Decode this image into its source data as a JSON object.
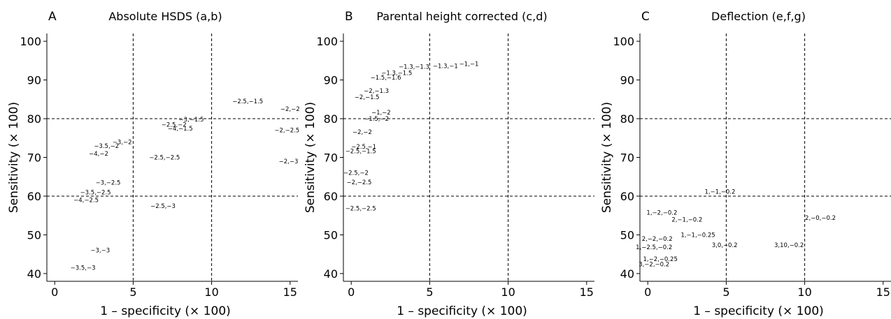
{
  "chart_data": [
    {
      "type": "scatter",
      "panel": "A",
      "title": "Absolute HSDS (a,b)",
      "xlabel": "1 – specificity (× 100)",
      "ylabel": "Sensitivity (× 100)",
      "xlim": [
        -0.5,
        15.5
      ],
      "ylim": [
        38,
        102
      ],
      "xticks": [
        0,
        5,
        10,
        15
      ],
      "yticks": [
        40,
        50,
        60,
        70,
        80,
        90,
        100
      ],
      "ref_x": [
        5,
        10
      ],
      "ref_y": [
        60,
        80
      ],
      "points": [
        {
          "label": "−2.5,−1.5",
          "x": 12.3,
          "y": 84.5
        },
        {
          "label": "−2,−2",
          "x": 15.0,
          "y": 82.5
        },
        {
          "label": "−3,−1.5",
          "x": 8.7,
          "y": 79.8
        },
        {
          "label": "−2.5,−2",
          "x": 7.6,
          "y": 78.5
        },
        {
          "label": "−4,−1.5",
          "x": 8.0,
          "y": 77.5
        },
        {
          "label": "−2,−2.5",
          "x": 14.8,
          "y": 77.0
        },
        {
          "label": "−3,−2",
          "x": 4.3,
          "y": 74.0
        },
        {
          "label": "−3.5,−2",
          "x": 3.3,
          "y": 73.0
        },
        {
          "label": "−4,−2",
          "x": 2.8,
          "y": 71.0
        },
        {
          "label": "−2.5,−2.5",
          "x": 7.0,
          "y": 70.0
        },
        {
          "label": "−2,−3",
          "x": 14.9,
          "y": 69.0
        },
        {
          "label": "−3,−2.5",
          "x": 3.4,
          "y": 63.5
        },
        {
          "label": "−3.5,−2.5",
          "x": 2.6,
          "y": 61.0
        },
        {
          "label": "−4,−2.5",
          "x": 2.0,
          "y": 59.0
        },
        {
          "label": "−2.5,−3",
          "x": 6.9,
          "y": 57.5
        },
        {
          "label": "−3,−3",
          "x": 2.9,
          "y": 46.0
        },
        {
          "label": "−3.5,−3",
          "x": 1.8,
          "y": 41.5
        }
      ]
    },
    {
      "type": "scatter",
      "panel": "B",
      "title": "Parental height corrected (c,d)",
      "xlabel": "1 – specificity (× 100)",
      "ylabel": "Sensitivity (× 100)",
      "xlim": [
        -0.5,
        15.5
      ],
      "ylim": [
        38,
        102
      ],
      "xticks": [
        0,
        5,
        10,
        15
      ],
      "yticks": [
        40,
        50,
        60,
        70,
        80,
        90,
        100
      ],
      "ref_x": [
        5,
        10
      ],
      "ref_y": [
        60,
        80
      ],
      "points": [
        {
          "label": "−1,−1",
          "x": 7.5,
          "y": 94.2
        },
        {
          "label": "−1.3,−1",
          "x": 6.0,
          "y": 93.6
        },
        {
          "label": "−1.3,−1.3",
          "x": 4.0,
          "y": 93.4
        },
        {
          "label": "−1.3,−1.5",
          "x": 2.9,
          "y": 91.8
        },
        {
          "label": "−1.5,−1.6",
          "x": 2.2,
          "y": 90.6
        },
        {
          "label": "−2,−1.3",
          "x": 1.6,
          "y": 87.2
        },
        {
          "label": "−2,−1.5",
          "x": 1.0,
          "y": 85.6
        },
        {
          "label": "−1,−2",
          "x": 1.9,
          "y": 81.6
        },
        {
          "label": "−1.5,−2",
          "x": 1.6,
          "y": 80.0
        },
        {
          "label": "−2,−2",
          "x": 0.7,
          "y": 76.6
        },
        {
          "label": "−2.5,−1",
          "x": 0.8,
          "y": 72.8
        },
        {
          "label": "−2.5,−1.5",
          "x": 0.6,
          "y": 71.6
        },
        {
          "label": "−2.5,−2",
          "x": 0.3,
          "y": 66.0
        },
        {
          "label": "−2,−2.5",
          "x": 0.5,
          "y": 63.6
        },
        {
          "label": "−2.5,−2.5",
          "x": 0.6,
          "y": 56.8
        }
      ]
    },
    {
      "type": "scatter",
      "panel": "C",
      "title": "Deflection (e,f,g)",
      "xlabel": "1 – specificity (× 100)",
      "ylabel": "Sensitivity (× 100)",
      "xlim": [
        -0.5,
        15.5
      ],
      "ylim": [
        38,
        102
      ],
      "xticks": [
        0,
        5,
        10,
        15
      ],
      "yticks": [
        40,
        50,
        60,
        70,
        80,
        90,
        100
      ],
      "ref_x": [
        5,
        10
      ],
      "ref_y": [
        60,
        80
      ],
      "points": [
        {
          "label": "1,−1,−0.2",
          "x": 4.6,
          "y": 61.2
        },
        {
          "label": "1,−2,−0.2",
          "x": 0.9,
          "y": 55.8
        },
        {
          "label": "2,−0,−0.2",
          "x": 11.0,
          "y": 54.4
        },
        {
          "label": "2,−1,−0.2",
          "x": 2.5,
          "y": 54.0
        },
        {
          "label": "1,−1,−0.25",
          "x": 3.2,
          "y": 50.0
        },
        {
          "label": "2,−2,−0.2",
          "x": 0.6,
          "y": 49.0
        },
        {
          "label": "3,0,−0.2",
          "x": 4.9,
          "y": 47.4
        },
        {
          "label": "3,10,−0.2",
          "x": 9.0,
          "y": 47.4
        },
        {
          "label": "1,−2.5,−0.2",
          "x": 0.4,
          "y": 46.8
        },
        {
          "label": "1,−2,−0.25",
          "x": 0.8,
          "y": 43.8
        },
        {
          "label": "3,−2,−0.2",
          "x": 0.4,
          "y": 42.4
        }
      ]
    }
  ]
}
